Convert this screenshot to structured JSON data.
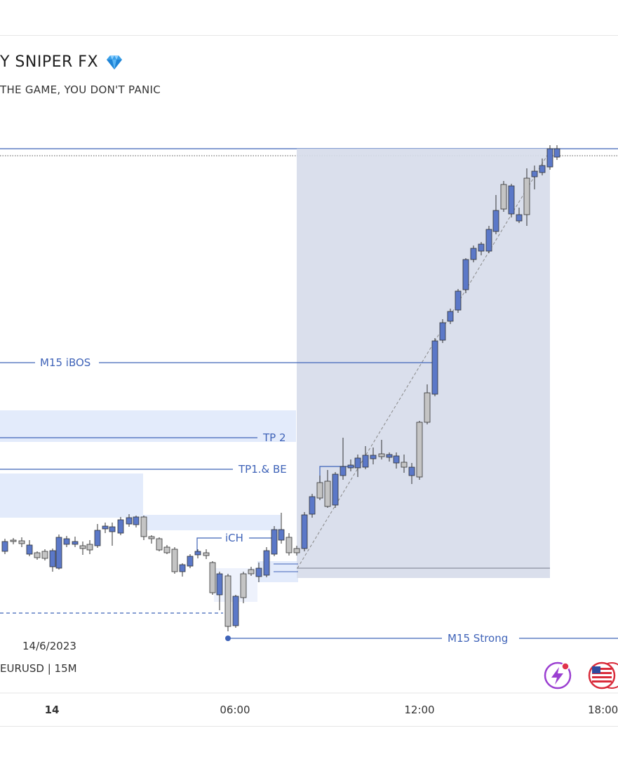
{
  "header": {
    "title": "Y SNIPER FX",
    "title_icon": "gem-icon",
    "subtitle": "THE GAME, YOU DON'T PANIC"
  },
  "chart_info": {
    "date": "14/6/2023",
    "symbol": "EURUSD | 15M"
  },
  "chart_data": {
    "type": "candlestick",
    "xlabel": "",
    "ylabel": "",
    "x_ticks": [
      "14",
      "06:00",
      "12:00",
      "18:00"
    ],
    "annotations": [
      {
        "label": "M15 iBOS",
        "kind": "level"
      },
      {
        "label": "TP 2",
        "kind": "level"
      },
      {
        "label": "TP1.& BE",
        "kind": "level"
      },
      {
        "label": "iCH",
        "kind": "level"
      },
      {
        "label": "M15 Strong",
        "kind": "level"
      }
    ],
    "colors": {
      "up": "#5b78c8",
      "down": "#c4c4c4",
      "line": "#3f63b8",
      "zone": "#e3ebfb",
      "box": "#d7dcea",
      "text_blue": "#3f63b8"
    },
    "candles_note": "no price scale is visible; candle prices are omitted"
  },
  "icons": {
    "alert": "lightning-alert-icon",
    "flag": "us-flag-icon"
  }
}
